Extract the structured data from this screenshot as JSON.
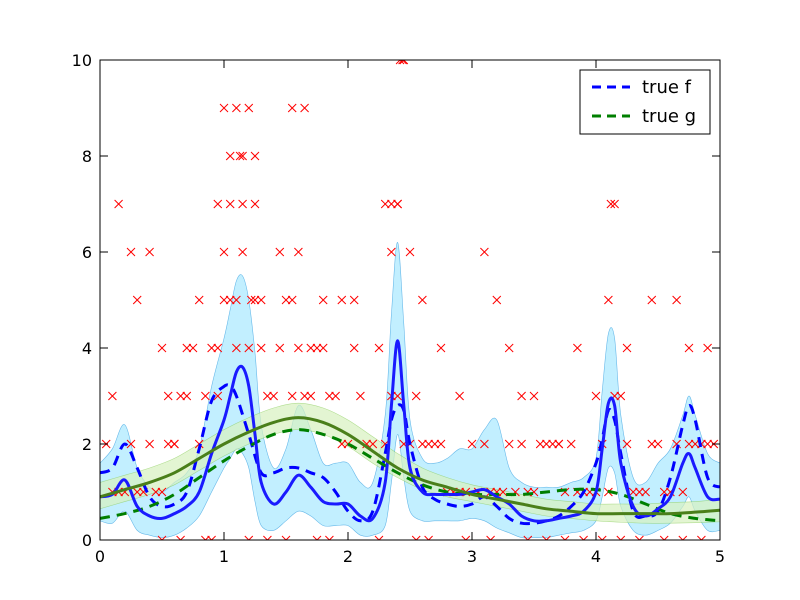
{
  "chart_data": {
    "type": "line",
    "title": "",
    "xlabel": "",
    "ylabel": "",
    "xlim": [
      0,
      5
    ],
    "ylim": [
      0,
      10
    ],
    "x_ticks": [
      "0",
      "1",
      "2",
      "3",
      "4",
      "5"
    ],
    "y_ticks": [
      "0",
      "2",
      "4",
      "6",
      "8",
      "10"
    ],
    "grid": false,
    "legend_position": "top-right",
    "legend": [
      {
        "label": "true f",
        "color": "#0000ff",
        "style": "dashed"
      },
      {
        "label": "true g",
        "color": "#007f00",
        "style": "dashed"
      }
    ],
    "colors": {
      "f_estimate": "#1a1aff",
      "f_band": "#bfefff",
      "g_estimate": "#4a7f1a",
      "g_band": "#d8f2c0",
      "observations": "#ff0000"
    },
    "series": [
      {
        "name": "true f",
        "style": "dashed",
        "x": [
          0,
          0.1,
          0.2,
          0.3,
          0.4,
          0.5,
          0.6,
          0.7,
          0.8,
          0.9,
          1.0,
          1.05,
          1.1,
          1.2,
          1.3,
          1.4,
          1.5,
          1.6,
          1.7,
          1.8,
          1.9,
          2.0,
          2.1,
          2.2,
          2.3,
          2.35,
          2.4,
          2.45,
          2.5,
          2.6,
          2.7,
          2.8,
          2.9,
          3.0,
          3.1,
          3.2,
          3.3,
          3.4,
          3.5,
          3.6,
          3.7,
          3.8,
          3.9,
          4.0,
          4.05,
          4.1,
          4.15,
          4.2,
          4.3,
          4.4,
          4.5,
          4.6,
          4.7,
          4.75,
          4.8,
          4.9,
          5.0
        ],
        "y": [
          1.4,
          1.5,
          2.0,
          1.5,
          0.9,
          0.7,
          0.75,
          1.0,
          1.9,
          2.9,
          3.2,
          3.2,
          3.0,
          2.2,
          1.4,
          1.4,
          1.5,
          1.5,
          1.4,
          1.3,
          1.0,
          0.6,
          0.4,
          0.6,
          1.8,
          2.5,
          2.8,
          2.7,
          2.0,
          1.1,
          0.85,
          0.75,
          0.7,
          0.75,
          0.9,
          0.7,
          0.45,
          0.35,
          0.35,
          0.4,
          0.5,
          0.7,
          1.0,
          1.6,
          2.1,
          2.7,
          2.5,
          1.8,
          0.6,
          0.5,
          0.6,
          1.3,
          2.4,
          2.8,
          2.5,
          1.3,
          1.1
        ]
      },
      {
        "name": "true g",
        "style": "dashed",
        "x": [
          0,
          0.2,
          0.4,
          0.6,
          0.8,
          1.0,
          1.2,
          1.4,
          1.6,
          1.8,
          2.0,
          2.2,
          2.4,
          2.6,
          2.8,
          3.0,
          3.2,
          3.4,
          3.6,
          3.8,
          4.0,
          4.2,
          4.4,
          4.6,
          4.8,
          5.0
        ],
        "y": [
          0.45,
          0.55,
          0.7,
          0.95,
          1.3,
          1.65,
          1.95,
          2.2,
          2.3,
          2.2,
          2.0,
          1.7,
          1.4,
          1.15,
          1.0,
          0.95,
          0.95,
          0.95,
          1.0,
          1.05,
          1.05,
          0.95,
          0.75,
          0.55,
          0.45,
          0.4
        ]
      },
      {
        "name": "",
        "style": "solid",
        "role": "f_estimate",
        "x": [
          0,
          0.1,
          0.2,
          0.3,
          0.4,
          0.5,
          0.6,
          0.7,
          0.8,
          0.9,
          1.0,
          1.05,
          1.1,
          1.15,
          1.2,
          1.25,
          1.3,
          1.4,
          1.5,
          1.6,
          1.7,
          1.8,
          1.9,
          2.0,
          2.1,
          2.2,
          2.3,
          2.35,
          2.4,
          2.45,
          2.5,
          2.6,
          2.7,
          2.8,
          2.9,
          3.0,
          3.1,
          3.2,
          3.3,
          3.4,
          3.5,
          3.6,
          3.7,
          3.8,
          3.9,
          4.0,
          4.05,
          4.1,
          4.15,
          4.2,
          4.3,
          4.4,
          4.5,
          4.6,
          4.7,
          4.75,
          4.8,
          4.9,
          5.0
        ],
        "y": [
          0.9,
          0.95,
          1.25,
          0.7,
          0.5,
          0.45,
          0.55,
          0.7,
          1.0,
          1.8,
          2.5,
          3.0,
          3.5,
          3.6,
          3.2,
          2.2,
          1.2,
          0.75,
          1.0,
          1.35,
          1.1,
          0.8,
          0.75,
          0.75,
          0.5,
          0.45,
          1.2,
          2.8,
          4.15,
          2.8,
          1.5,
          1.0,
          0.95,
          0.95,
          0.95,
          1.0,
          1.05,
          0.9,
          0.75,
          0.5,
          0.4,
          0.4,
          0.45,
          0.5,
          0.6,
          1.0,
          1.9,
          2.85,
          2.8,
          1.6,
          0.7,
          0.5,
          0.65,
          0.9,
          1.6,
          1.8,
          1.5,
          0.9,
          0.85
        ]
      },
      {
        "name": "",
        "style": "solid",
        "role": "g_estimate",
        "x": [
          0,
          0.2,
          0.4,
          0.6,
          0.8,
          1.0,
          1.2,
          1.4,
          1.6,
          1.8,
          2.0,
          2.2,
          2.4,
          2.6,
          2.8,
          3.0,
          3.2,
          3.4,
          3.6,
          3.8,
          4.0,
          4.2,
          4.4,
          4.6,
          4.8,
          5.0
        ],
        "y": [
          0.9,
          1.05,
          1.2,
          1.4,
          1.7,
          2.0,
          2.25,
          2.45,
          2.55,
          2.45,
          2.2,
          1.85,
          1.5,
          1.25,
          1.1,
          0.95,
          0.85,
          0.75,
          0.65,
          0.6,
          0.55,
          0.55,
          0.55,
          0.55,
          0.58,
          0.62
        ]
      }
    ],
    "bands": [
      {
        "role": "f_band",
        "x": [
          0,
          0.1,
          0.2,
          0.3,
          0.4,
          0.5,
          0.6,
          0.7,
          0.8,
          0.9,
          1.0,
          1.05,
          1.1,
          1.15,
          1.2,
          1.25,
          1.3,
          1.4,
          1.5,
          1.6,
          1.7,
          1.8,
          1.9,
          2.0,
          2.1,
          2.2,
          2.3,
          2.35,
          2.4,
          2.45,
          2.5,
          2.6,
          2.7,
          2.8,
          2.9,
          3.0,
          3.1,
          3.2,
          3.3,
          3.4,
          3.5,
          3.6,
          3.7,
          3.8,
          3.9,
          4.0,
          4.05,
          4.1,
          4.15,
          4.2,
          4.3,
          4.4,
          4.5,
          4.6,
          4.7,
          4.75,
          4.8,
          4.9,
          5.0
        ],
        "lower": [
          0.4,
          0.35,
          0.6,
          0.2,
          0.1,
          0.05,
          0.1,
          0.25,
          0.5,
          1.0,
          1.5,
          1.7,
          1.9,
          1.8,
          1.5,
          0.8,
          0.3,
          0.2,
          0.4,
          0.6,
          0.5,
          0.3,
          0.3,
          0.3,
          0.1,
          0.1,
          0.3,
          1.2,
          2.2,
          1.3,
          0.6,
          0.4,
          0.4,
          0.4,
          0.4,
          0.45,
          0.4,
          0.25,
          0.15,
          0.05,
          0.05,
          0.05,
          0.1,
          0.15,
          0.2,
          0.4,
          0.9,
          1.5,
          1.4,
          0.7,
          0.2,
          0.1,
          0.2,
          0.35,
          0.7,
          0.9,
          0.6,
          0.2,
          0.2
        ],
        "upper": [
          1.6,
          1.9,
          2.4,
          1.5,
          1.1,
          1.0,
          1.2,
          1.4,
          1.9,
          3.2,
          4.2,
          4.8,
          5.4,
          5.5,
          5.0,
          3.9,
          2.4,
          1.5,
          1.9,
          2.8,
          2.3,
          1.6,
          1.6,
          1.6,
          1.2,
          1.2,
          2.6,
          4.7,
          6.2,
          4.5,
          2.5,
          1.7,
          1.6,
          1.7,
          1.9,
          1.9,
          2.3,
          2.5,
          1.5,
          1.2,
          1.1,
          1.1,
          1.1,
          1.2,
          1.3,
          1.7,
          3.1,
          4.3,
          4.2,
          2.6,
          1.3,
          1.2,
          1.6,
          1.9,
          2.6,
          3.0,
          2.6,
          1.8,
          1.6
        ]
      },
      {
        "role": "g_band",
        "x": [
          0,
          0.2,
          0.4,
          0.6,
          0.8,
          1.0,
          1.2,
          1.4,
          1.6,
          1.8,
          2.0,
          2.2,
          2.4,
          2.6,
          2.8,
          3.0,
          3.2,
          3.4,
          3.6,
          3.8,
          4.0,
          4.2,
          4.4,
          4.6,
          4.8,
          5.0
        ],
        "lower": [
          0.65,
          0.8,
          0.95,
          1.15,
          1.45,
          1.75,
          2.0,
          2.2,
          2.3,
          2.2,
          1.95,
          1.6,
          1.3,
          1.05,
          0.9,
          0.8,
          0.7,
          0.6,
          0.5,
          0.45,
          0.4,
          0.37,
          0.35,
          0.35,
          0.36,
          0.38
        ],
        "upper": [
          1.2,
          1.35,
          1.5,
          1.7,
          2.0,
          2.3,
          2.55,
          2.75,
          2.85,
          2.75,
          2.5,
          2.15,
          1.8,
          1.5,
          1.3,
          1.15,
          1.05,
          0.95,
          0.85,
          0.8,
          0.75,
          0.75,
          0.75,
          0.78,
          0.8,
          0.85
        ]
      }
    ],
    "observations": {
      "x": [
        0.05,
        0.1,
        0.15,
        0.2,
        0.25,
        0.3,
        0.35,
        0.4,
        0.45,
        0.5,
        0.55,
        0.6,
        0.65,
        0.7,
        0.75,
        0.8,
        0.85,
        0.9,
        0.95,
        1.0,
        1.05,
        1.1,
        1.15,
        1.2,
        1.25,
        1.3,
        1.35,
        1.4,
        1.45,
        1.5,
        1.55,
        1.6,
        1.65,
        1.7,
        1.75,
        1.8,
        1.85,
        1.9,
        1.95,
        2.0,
        2.05,
        2.1,
        2.15,
        2.2,
        2.25,
        2.3,
        2.35,
        2.4,
        2.45,
        2.5,
        2.55,
        2.6,
        2.65,
        2.7,
        2.75,
        2.8,
        2.85,
        2.9,
        2.95,
        3.0,
        3.05,
        3.1,
        3.15,
        3.2,
        3.25,
        3.3,
        3.35,
        3.4,
        3.45,
        3.5,
        3.55,
        3.6,
        3.65,
        3.7,
        3.75,
        3.8,
        3.85,
        3.9,
        3.95,
        4.0,
        4.05,
        4.1,
        4.15,
        4.2,
        4.25,
        4.3,
        4.35,
        4.4,
        4.45,
        4.5,
        4.55,
        4.6,
        4.65,
        4.7,
        4.75,
        4.8,
        4.85,
        4.9,
        4.95,
        0.15,
        0.25,
        0.3,
        0.4,
        0.5,
        0.55,
        0.6,
        0.7,
        0.8,
        0.95,
        1.0,
        1.05,
        1.1,
        1.15,
        1.25,
        1.3,
        1.45,
        1.55,
        1.6,
        1.7,
        1.8,
        1.95,
        2.05,
        2.3,
        2.35,
        2.4,
        2.45,
        2.5,
        2.6,
        2.75,
        2.9,
        3.1,
        3.2,
        3.3,
        3.4,
        3.5,
        3.7,
        3.85,
        4.0,
        4.1,
        4.15,
        4.25,
        4.45,
        4.65,
        4.75,
        4.9,
        0.1,
        0.5,
        0.65,
        0.85,
        0.9,
        1.2,
        1.35,
        1.5,
        1.75,
        1.85,
        2.25,
        2.55,
        2.65,
        2.95,
        3.15,
        3.45,
        3.6,
        3.75,
        3.9,
        4.05,
        4.2,
        4.35,
        4.55,
        4.7,
        4.85,
        1.0,
        1.1,
        1.2,
        1.15,
        1.25,
        2.35,
        2.4,
        4.12,
        1.05,
        1.13,
        1.65,
        1.55,
        2.42,
        2.44,
        0.95,
        1.22
      ],
      "y": [
        2,
        1,
        1,
        1,
        2,
        1,
        1,
        2,
        1,
        1,
        2,
        2,
        3,
        3,
        4,
        2,
        3,
        4,
        3,
        5,
        5,
        4,
        6,
        4,
        5,
        4,
        3,
        3,
        4,
        5,
        3,
        4,
        3,
        3,
        4,
        4,
        3,
        3,
        2,
        2,
        4,
        3,
        2,
        2,
        4,
        2,
        3,
        3,
        2,
        2,
        3,
        2,
        2,
        2,
        2,
        1,
        1,
        1,
        1,
        2,
        1,
        2,
        1,
        1,
        1,
        2,
        1,
        2,
        1,
        1,
        2,
        2,
        2,
        2,
        1,
        2,
        1,
        1,
        1,
        1,
        2,
        1,
        3,
        3,
        2,
        1,
        1,
        1,
        2,
        2,
        1,
        1,
        2,
        1,
        2,
        2,
        2,
        2,
        2,
        7,
        6,
        5,
        6,
        4,
        3,
        2,
        4,
        5,
        7,
        6,
        7,
        5,
        7,
        7,
        5,
        6,
        5,
        6,
        4,
        5,
        5,
        5,
        7,
        6,
        7,
        10,
        6,
        5,
        4,
        3,
        6,
        5,
        4,
        3,
        3,
        2,
        4,
        3,
        5,
        7,
        4,
        5,
        5,
        4,
        4,
        3,
        0,
        0,
        0,
        0,
        0,
        0,
        0,
        0,
        0,
        0,
        0,
        0,
        0,
        0,
        0,
        0,
        0,
        0,
        0,
        0,
        0,
        0,
        0,
        0,
        9,
        9,
        9,
        8,
        8,
        7,
        7,
        7,
        8,
        8,
        9,
        9,
        10,
        10,
        4,
        5
      ]
    }
  }
}
